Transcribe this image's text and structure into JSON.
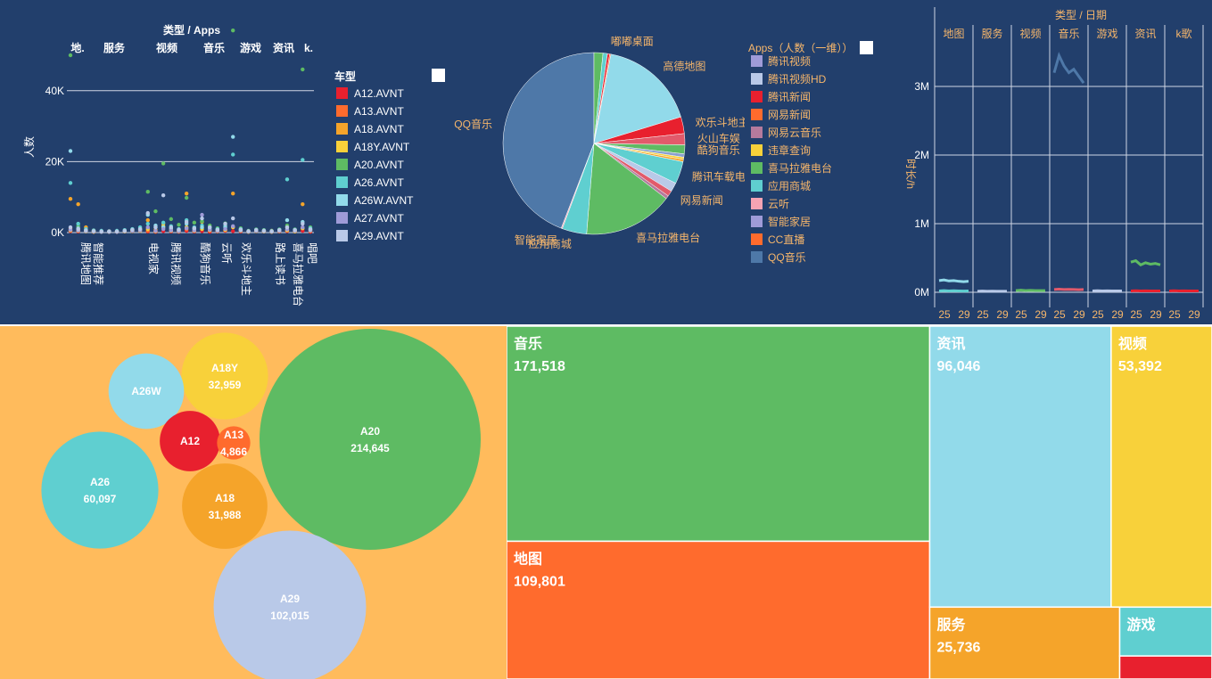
{
  "chart_data": [
    {
      "id": "scatter",
      "type": "scatter",
      "title": "类型 / Apps",
      "ylabel": "人数",
      "ylim": [
        0,
        50000
      ],
      "yticks": [
        0,
        20000,
        40000
      ],
      "ytick_labels": [
        "0K",
        "20K",
        "40K"
      ],
      "grid": true,
      "legend_position": "right",
      "facet_labels": [
        "地.",
        "服务",
        "视频",
        "音乐",
        "游戏",
        "资讯",
        "k."
      ],
      "x_labels": [
        "腾讯地图",
        "智能推荐",
        "电视家",
        "腾讯视频",
        "酷狗音乐",
        "云听",
        "欢乐斗地主",
        "路上读书",
        "喜马拉雅电台",
        "唱吧"
      ],
      "series": [
        {
          "name": "A12.AVNT",
          "color": "#e8202e",
          "values": [
            400,
            300,
            500,
            200,
            300,
            400,
            200,
            300,
            400,
            500,
            300,
            200,
            400,
            300,
            200,
            500,
            300,
            400,
            200,
            300,
            500,
            400,
            300,
            200,
            400,
            300,
            200,
            300,
            400,
            300,
            500,
            200
          ]
        },
        {
          "name": "A13.AVNT",
          "color": "#ff6b2d",
          "values": [
            1200,
            800,
            600,
            400,
            300,
            200,
            300,
            400,
            600,
            800,
            500,
            300,
            1200,
            600,
            400,
            900,
            500,
            1400,
            700,
            400,
            800,
            1600,
            600,
            300,
            500,
            400,
            300,
            500,
            700,
            400,
            1200,
            600
          ]
        },
        {
          "name": "A18.AVNT",
          "color": "#f5a42a",
          "values": [
            9500,
            8000,
            1500,
            600,
            400,
            300,
            400,
            500,
            800,
            1000,
            3500,
            800,
            2500,
            900,
            600,
            11000,
            1200,
            3000,
            1500,
            900,
            2000,
            11000,
            900,
            400,
            800,
            600,
            500,
            800,
            1500,
            800,
            8000,
            1000
          ]
        },
        {
          "name": "A18Y.AVNT",
          "color": "#f8d13a",
          "values": [
            600,
            500,
            300,
            200,
            200,
            200,
            200,
            300,
            400,
            500,
            1000,
            400,
            1800,
            500,
            300,
            1500,
            500,
            1000,
            600,
            400,
            700,
            1500,
            500,
            200,
            400,
            300,
            200,
            400,
            600,
            300,
            1200,
            500
          ]
        },
        {
          "name": "A20.AVNT",
          "color": "#5ebb63",
          "values": [
            50000,
            1800,
            800,
            500,
            400,
            300,
            400,
            600,
            900,
            1200,
            11500,
            6000,
            19500,
            3800,
            2200,
            9800,
            2800,
            3200,
            2000,
            1200,
            2600,
            57000,
            1200,
            500,
            900,
            700,
            500,
            900,
            2000,
            900,
            46000,
            1500
          ]
        },
        {
          "name": "A26.AVNT",
          "color": "#5fcfd0",
          "values": [
            14000,
            2500,
            1000,
            600,
            500,
            400,
            500,
            700,
            1000,
            1500,
            2500,
            1500,
            2800,
            1800,
            1000,
            3500,
            1500,
            2000,
            1500,
            1000,
            2000,
            22000,
            1000,
            400,
            800,
            600,
            400,
            800,
            15000,
            800,
            20500,
            1200
          ]
        },
        {
          "name": "A26W.AVNT",
          "color": "#92daea",
          "values": [
            23000,
            1200,
            600,
            400,
            300,
            300,
            300,
            500,
            700,
            900,
            5000,
            2000,
            1500,
            1200,
            700,
            2500,
            1000,
            1500,
            1000,
            700,
            1500,
            27000,
            800,
            300,
            600,
            500,
            300,
            600,
            3500,
            600,
            3000,
            900
          ]
        },
        {
          "name": "A27.AVNT",
          "color": "#9f9bd8",
          "values": [
            800,
            600,
            400,
            300,
            200,
            200,
            200,
            400,
            500,
            600,
            1500,
            500,
            1000,
            600,
            400,
            1200,
            600,
            5000,
            800,
            500,
            1000,
            1800,
            600,
            300,
            500,
            400,
            300,
            500,
            900,
            500,
            1500,
            600
          ]
        },
        {
          "name": "A29.AVNT",
          "color": "#b9c9e8",
          "values": [
            1500,
            1000,
            600,
            400,
            300,
            300,
            300,
            500,
            800,
            1000,
            5500,
            1500,
            10500,
            1500,
            800,
            3000,
            1200,
            4000,
            1500,
            800,
            2500,
            4000,
            800,
            400,
            700,
            500,
            400,
            700,
            1500,
            700,
            2500,
            900
          ]
        }
      ]
    },
    {
      "id": "pie",
      "type": "pie",
      "legend_title": "Apps（人数（一维））",
      "slices": [
        {
          "label": "QQ音乐",
          "value": 222,
          "color": "#4e78a8"
        },
        {
          "label": "",
          "value": 8,
          "color": "#5ebb63"
        },
        {
          "label": "",
          "value": 4,
          "color": "#5fcfd0"
        },
        {
          "label": "嘟嘟桌面",
          "value": 2,
          "color": "#e8202e"
        },
        {
          "label": "",
          "value": 1,
          "color": "#ff6b2d"
        },
        {
          "label": "高德地图",
          "value": 87,
          "color": "#92daea"
        },
        {
          "label": "欢乐斗地主",
          "value": 15,
          "color": "#e8202e"
        },
        {
          "label": "火山车娱",
          "value": 10,
          "color": "#e25a6b"
        },
        {
          "label": "酷狗音乐",
          "value": 8,
          "color": "#5ebb63"
        },
        {
          "label": "",
          "value": 3,
          "color": "#8aa0d0"
        },
        {
          "label": "",
          "value": 2,
          "color": "#f8d13a"
        },
        {
          "label": "",
          "value": 2,
          "color": "#f5a42a"
        },
        {
          "label": "腾讯车载电台",
          "value": 20,
          "color": "#5fcfd0"
        },
        {
          "label": "",
          "value": 8,
          "color": "#b9c9e8"
        },
        {
          "label": "网易新闻",
          "value": 5,
          "color": "#e25a6b"
        },
        {
          "label": "",
          "value": 3,
          "color": "#b57a9d"
        },
        {
          "label": "喜马拉雅电台",
          "value": 80,
          "color": "#5ebb63"
        },
        {
          "label": "应用商城",
          "value": 22,
          "color": "#5fcfd0"
        },
        {
          "label": "智能家居",
          "value": 1,
          "color": "#f5a3b3"
        }
      ],
      "legend_items": [
        {
          "label": "腾讯视频",
          "color": "#9f9bd8"
        },
        {
          "label": "腾讯视频HD",
          "color": "#b9c9e8"
        },
        {
          "label": "腾讯新闻",
          "color": "#e8202e"
        },
        {
          "label": "网易新闻",
          "color": "#ff6b2d"
        },
        {
          "label": "网易云音乐",
          "color": "#b57a9d"
        },
        {
          "label": "违章查询",
          "color": "#f8d13a"
        },
        {
          "label": "喜马拉雅电台",
          "color": "#5ebb63"
        },
        {
          "label": "应用商城",
          "color": "#5fcfd0"
        },
        {
          "label": "云听",
          "color": "#f5a3b3"
        },
        {
          "label": "智能家居",
          "color": "#9f9bd8"
        },
        {
          "label": "CC直播",
          "color": "#ff6b2d"
        },
        {
          "label": "QQ音乐",
          "color": "#4e78a8"
        }
      ]
    },
    {
      "id": "lines",
      "type": "line",
      "title": "类型 / 日期",
      "ylabel": "时长/h",
      "ylim": [
        0,
        3500000
      ],
      "yticks": [
        0,
        1000000,
        2000000,
        3000000
      ],
      "ytick_labels": [
        "0M",
        "1M",
        "2M",
        "3M"
      ],
      "facets": [
        "地图",
        "服务",
        "视频",
        "音乐",
        "游戏",
        "资讯",
        "k歌"
      ],
      "x_tick_labels": [
        "25",
        "29"
      ],
      "series": [
        {
          "facet": "地图",
          "color": "#92daea",
          "values": [
            170000,
            180000,
            165000,
            170000,
            160000,
            155000,
            160000
          ]
        },
        {
          "facet": "地图",
          "color": "#5fcfd0",
          "values": [
            20000,
            25000,
            20000,
            22000,
            20000,
            18000,
            20000
          ]
        },
        {
          "facet": "服务",
          "color": "#b9c9e8",
          "values": [
            15000,
            18000,
            15000,
            16000,
            15000,
            14000,
            15000
          ]
        },
        {
          "facet": "视频",
          "color": "#5ebb63",
          "values": [
            25000,
            30000,
            25000,
            28000,
            25000,
            24000,
            25000
          ]
        },
        {
          "facet": "音乐",
          "color": "#4e78a8",
          "values": [
            3200000,
            3450000,
            3300000,
            3200000,
            3250000,
            3150000,
            3050000
          ]
        },
        {
          "facet": "音乐",
          "color": "#e25a6b",
          "values": [
            40000,
            45000,
            40000,
            42000,
            40000,
            38000,
            40000
          ]
        },
        {
          "facet": "游戏",
          "color": "#b9c9e8",
          "values": [
            20000,
            22000,
            20000,
            21000,
            20000,
            19000,
            20000
          ]
        },
        {
          "facet": "资讯",
          "color": "#5ebb63",
          "values": [
            440000,
            460000,
            400000,
            430000,
            410000,
            420000,
            400000
          ]
        },
        {
          "facet": "资讯",
          "color": "#e8202e",
          "values": [
            20000,
            22000,
            20000,
            21000,
            20000,
            19000,
            20000
          ]
        },
        {
          "facet": "k歌",
          "color": "#e8202e",
          "values": [
            20000,
            22000,
            20000,
            21000,
            20000,
            19000,
            20000
          ]
        }
      ]
    },
    {
      "id": "bubbles",
      "type": "bubble",
      "items": [
        {
          "label": "A20",
          "value": 214645,
          "value_text": "214,645",
          "color": "#5ebb63"
        },
        {
          "label": "A29",
          "value": 102015,
          "value_text": "102,015",
          "color": "#b9c9e8"
        },
        {
          "label": "A26",
          "value": 60097,
          "value_text": "60,097",
          "color": "#5fcfd0"
        },
        {
          "label": "A18Y",
          "value": 32959,
          "value_text": "32,959",
          "color": "#f8d13a"
        },
        {
          "label": "A18",
          "value": 31988,
          "value_text": "31,988",
          "color": "#f5a42a"
        },
        {
          "label": "A26W",
          "value": 25000,
          "value_text": "",
          "color": "#92daea"
        },
        {
          "label": "A12",
          "value": 16000,
          "value_text": "",
          "color": "#e8202e"
        },
        {
          "label": "A13",
          "value": 4866,
          "value_text": "4,866",
          "color": "#ff6b2d"
        }
      ]
    },
    {
      "id": "treemap",
      "type": "treemap",
      "items": [
        {
          "label": "音乐",
          "value": 171518,
          "value_text": "171,518",
          "color": "#5ebb63"
        },
        {
          "label": "地图",
          "value": 109801,
          "value_text": "109,801",
          "color": "#ff6b2d"
        },
        {
          "label": "资讯",
          "value": 96046,
          "value_text": "96,046",
          "color": "#92daea"
        },
        {
          "label": "视频",
          "value": 53392,
          "value_text": "53,392",
          "color": "#f8d13a"
        },
        {
          "label": "服务",
          "value": 25736,
          "value_text": "25,736",
          "color": "#f5a42a"
        },
        {
          "label": "游戏",
          "value": 8500,
          "value_text": "",
          "color": "#5fcfd0"
        },
        {
          "label": "",
          "value": 4000,
          "value_text": "",
          "color": "#e8202e"
        }
      ]
    }
  ],
  "legend1": {
    "title": "车型"
  }
}
